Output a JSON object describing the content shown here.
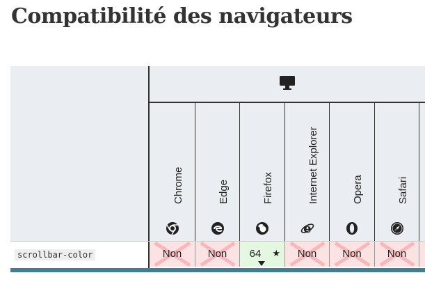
{
  "page": {
    "title": "Compatibilité des navigateurs"
  },
  "table": {
    "platform_icon": "desktop-icon",
    "browsers": [
      {
        "name": "Chrome",
        "icon": "chrome-icon"
      },
      {
        "name": "Edge",
        "icon": "edge-icon"
      },
      {
        "name": "Firefox",
        "icon": "firefox-icon"
      },
      {
        "name": "Internet Explorer",
        "icon": "ie-icon"
      },
      {
        "name": "Opera",
        "icon": "opera-icon"
      },
      {
        "name": "Safari",
        "icon": "safari-icon"
      }
    ],
    "rows": [
      {
        "feature": "scrollbar-color",
        "cells": [
          {
            "label": "Non",
            "status": "no"
          },
          {
            "label": "Non",
            "status": "no"
          },
          {
            "label": "64",
            "status": "yes",
            "note": "★"
          },
          {
            "label": "Non",
            "status": "no"
          },
          {
            "label": "Non",
            "status": "no"
          },
          {
            "label": "Non",
            "status": "no"
          }
        ]
      }
    ]
  },
  "colors": {
    "no_bg": "#fbe3e4",
    "yes_bg": "#e4f8e1",
    "accent": "#3d7e9a",
    "line": "#333333"
  }
}
